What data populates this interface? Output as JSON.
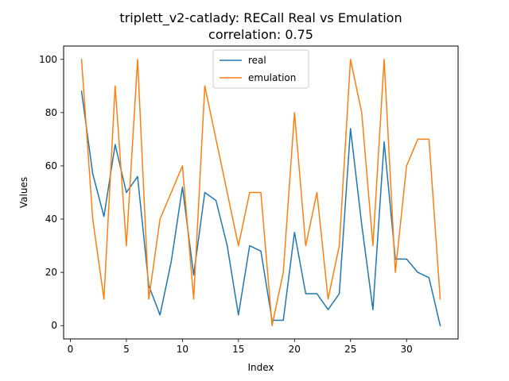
{
  "chart_data": {
    "type": "line",
    "title": "triplett_v2-catlady: RECall Real vs Emulation",
    "subtitle": "correlation: 0.75",
    "xlabel": "Index",
    "ylabel": "Values",
    "xlim": [
      -0.6,
      34.6
    ],
    "ylim": [
      -5,
      105
    ],
    "xticks": [
      0,
      5,
      10,
      15,
      20,
      25,
      30
    ],
    "yticks": [
      0,
      20,
      40,
      60,
      80,
      100
    ],
    "grid": false,
    "legend_position": "top-center",
    "x": [
      1,
      2,
      3,
      4,
      5,
      6,
      7,
      8,
      9,
      10,
      11,
      12,
      13,
      14,
      15,
      16,
      17,
      18,
      19,
      20,
      21,
      22,
      23,
      24,
      25,
      26,
      27,
      28,
      29,
      30,
      31,
      32,
      33
    ],
    "series": [
      {
        "name": "real",
        "color": "#1f77b4",
        "values": [
          88,
          57,
          41,
          68,
          50,
          56,
          15,
          4,
          24,
          52,
          19,
          50,
          47,
          30,
          4,
          30,
          28,
          2,
          2,
          35,
          12,
          12,
          6,
          12,
          74,
          38,
          6,
          69,
          25,
          25,
          20,
          18,
          0
        ]
      },
      {
        "name": "emulation",
        "color": "#ff7f0e",
        "values": [
          100,
          40,
          10,
          90,
          30,
          100,
          10,
          40,
          50,
          60,
          10,
          90,
          70,
          50,
          30,
          50,
          50,
          0,
          20,
          80,
          30,
          50,
          10,
          30,
          100,
          80,
          30,
          100,
          20,
          60,
          70,
          70,
          10
        ]
      }
    ]
  }
}
